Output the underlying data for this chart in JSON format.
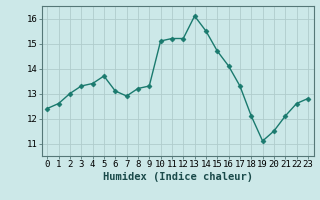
{
  "x": [
    0,
    1,
    2,
    3,
    4,
    5,
    6,
    7,
    8,
    9,
    10,
    11,
    12,
    13,
    14,
    15,
    16,
    17,
    18,
    19,
    20,
    21,
    22,
    23
  ],
  "y": [
    12.4,
    12.6,
    13.0,
    13.3,
    13.4,
    13.7,
    13.1,
    12.9,
    13.2,
    13.3,
    15.1,
    15.2,
    15.2,
    16.1,
    15.5,
    14.7,
    14.1,
    13.3,
    12.1,
    11.1,
    11.5,
    12.1,
    12.6,
    12.8
  ],
  "line_color": "#1a7a6e",
  "marker": "D",
  "marker_size": 2.5,
  "bg_color": "#cce8e8",
  "grid_major_color": "#b0cccc",
  "grid_minor_color": "#c4dcdc",
  "xlabel": "Humidex (Indice chaleur)",
  "ylim": [
    10.5,
    16.5
  ],
  "xlim": [
    -0.5,
    23.5
  ],
  "yticks": [
    11,
    12,
    13,
    14,
    15,
    16
  ],
  "xticks": [
    0,
    1,
    2,
    3,
    4,
    5,
    6,
    7,
    8,
    9,
    10,
    11,
    12,
    13,
    14,
    15,
    16,
    17,
    18,
    19,
    20,
    21,
    22,
    23
  ],
  "xlabel_fontsize": 7.5,
  "tick_fontsize": 6.5,
  "spine_color": "#557777",
  "linewidth": 1.0
}
